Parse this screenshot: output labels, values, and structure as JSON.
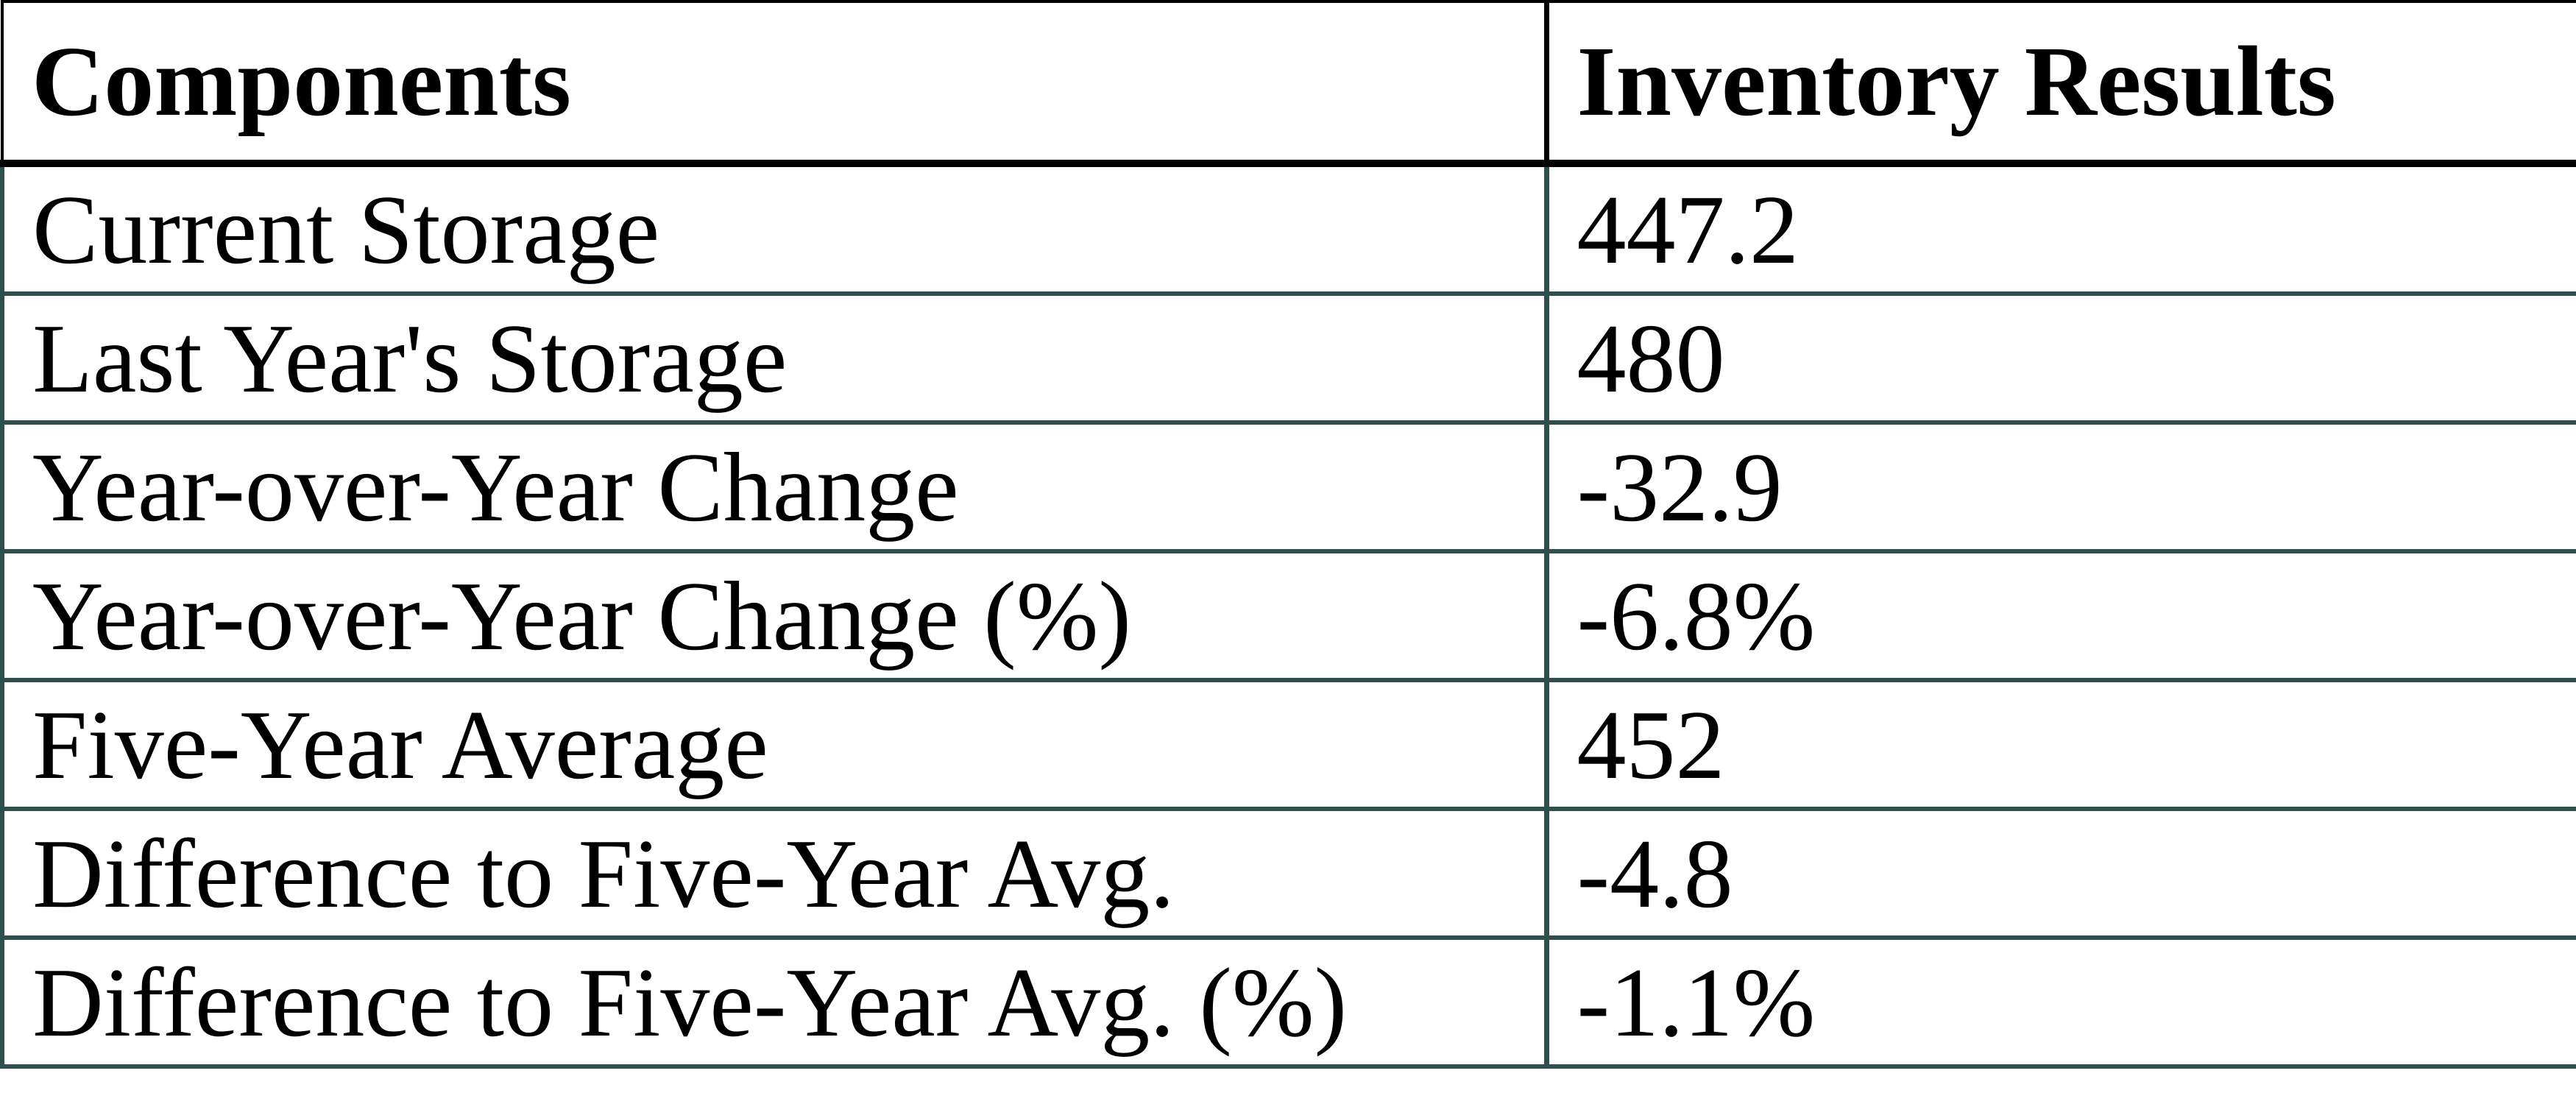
{
  "chart_data": {
    "type": "table",
    "columns": [
      "Components",
      "Inventory Results"
    ],
    "rows": [
      [
        "Current Storage",
        "447.2"
      ],
      [
        "Last Year's Storage",
        "480"
      ],
      [
        "Year-over-Year Change",
        "-32.9"
      ],
      [
        "Year-over-Year Change (%)",
        "-6.8%"
      ],
      [
        "Five-Year Average",
        "452"
      ],
      [
        "Difference to Five-Year Avg.",
        "-4.8"
      ],
      [
        "Difference to Five-Year Avg. (%)",
        "-1.1%"
      ]
    ]
  },
  "colors": {
    "header_border": "#000000",
    "body_border": "#2F4F4F",
    "background": "#FFFFFF",
    "text": "#000000"
  }
}
